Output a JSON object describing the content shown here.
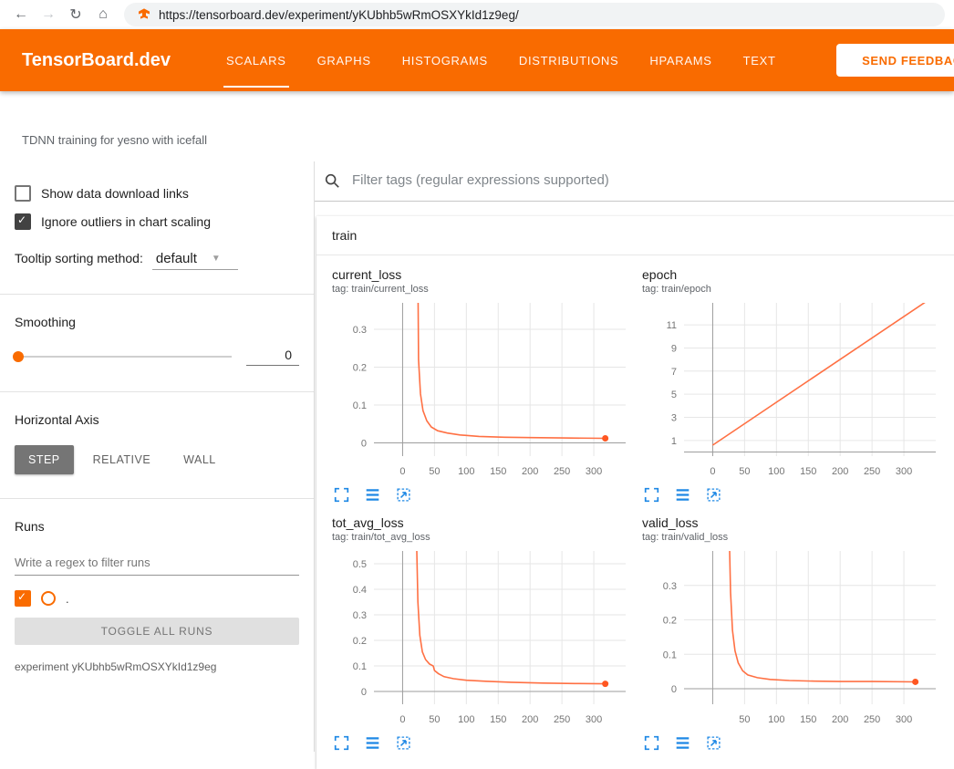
{
  "browser": {
    "url": "https://tensorboard.dev/experiment/yKUbhb5wRmOSXYkId1z9eg/",
    "back_glyph": "←",
    "forward_glyph": "→",
    "reload_glyph": "↻",
    "home_glyph": "⌂"
  },
  "appbar": {
    "brand": "TensorBoard.dev",
    "tabs": [
      "SCALARS",
      "GRAPHS",
      "HISTOGRAMS",
      "DISTRIBUTIONS",
      "HPARAMS",
      "TEXT"
    ],
    "active_tab": "SCALARS",
    "feedback_label": "SEND FEEDBACK"
  },
  "subheader": {
    "experiment_description": "TDNN training for yesno with icefall"
  },
  "sidebar": {
    "show_download_links": {
      "label": "Show data download links",
      "checked": false
    },
    "ignore_outliers": {
      "label": "Ignore outliers in chart scaling",
      "checked": true
    },
    "tooltip_sorting": {
      "label": "Tooltip sorting method:",
      "value": "default"
    },
    "smoothing": {
      "label": "Smoothing",
      "value": "0"
    },
    "horizontal_axis": {
      "label": "Horizontal Axis",
      "options": [
        "STEP",
        "RELATIVE",
        "WALL"
      ],
      "selected": "STEP"
    },
    "runs": {
      "label": "Runs",
      "filter_placeholder": "Write a regex to filter runs",
      "run_checked": true,
      "run_label": ".",
      "toggle_all_label": "TOGGLE ALL RUNS",
      "experiment_label": "experiment yKUbhb5wRmOSXYkId1z9eg"
    }
  },
  "main": {
    "filter_placeholder": "Filter tags (regular expressions supported)",
    "group_label": "train"
  },
  "theme": {
    "accent_orange": "#f96b00",
    "chart_line": "#ff7043",
    "chart_dot": "#ff5722",
    "icon_blue": "#1e88e5"
  },
  "chart_data": [
    {
      "type": "line",
      "title": "current_loss",
      "tag": "tag: train/current_loss",
      "x_ticks": [
        0,
        50,
        100,
        150,
        200,
        250,
        300
      ],
      "y_ticks": [
        0,
        0.1,
        0.2,
        0.3
      ],
      "xlim": [
        -45,
        350
      ],
      "ylim": [
        -0.035,
        0.37
      ],
      "endpoint_dot": true,
      "points": [
        [
          24,
          0.45
        ],
        [
          25,
          0.22
        ],
        [
          28,
          0.13
        ],
        [
          32,
          0.085
        ],
        [
          38,
          0.058
        ],
        [
          45,
          0.042
        ],
        [
          55,
          0.032
        ],
        [
          70,
          0.026
        ],
        [
          90,
          0.021
        ],
        [
          120,
          0.017
        ],
        [
          160,
          0.015
        ],
        [
          200,
          0.014
        ],
        [
          250,
          0.013
        ],
        [
          318,
          0.012
        ]
      ]
    },
    {
      "type": "line",
      "title": "epoch",
      "tag": "tag: train/epoch",
      "x_ticks": [
        0,
        50,
        100,
        150,
        200,
        250,
        300
      ],
      "y_ticks": [
        1,
        3,
        5,
        7,
        9,
        11
      ],
      "xlim": [
        -45,
        350
      ],
      "ylim": [
        -0.35,
        12.9
      ],
      "endpoint_dot": false,
      "points": [
        [
          0,
          0.6
        ],
        [
          340,
          13.2
        ]
      ]
    },
    {
      "type": "line",
      "title": "tot_avg_loss",
      "tag": "tag: train/tot_avg_loss",
      "x_ticks": [
        0,
        50,
        100,
        150,
        200,
        250,
        300
      ],
      "y_ticks": [
        0,
        0.1,
        0.2,
        0.3,
        0.4,
        0.5
      ],
      "xlim": [
        -45,
        350
      ],
      "ylim": [
        -0.05,
        0.55
      ],
      "endpoint_dot": true,
      "points": [
        [
          22,
          0.58
        ],
        [
          24,
          0.35
        ],
        [
          27,
          0.22
        ],
        [
          31,
          0.155
        ],
        [
          36,
          0.125
        ],
        [
          42,
          0.108
        ],
        [
          48,
          0.1
        ],
        [
          50,
          0.082
        ],
        [
          56,
          0.07
        ],
        [
          65,
          0.058
        ],
        [
          80,
          0.05
        ],
        [
          100,
          0.044
        ],
        [
          130,
          0.04
        ],
        [
          170,
          0.036
        ],
        [
          220,
          0.033
        ],
        [
          270,
          0.031
        ],
        [
          318,
          0.03
        ]
      ]
    },
    {
      "type": "line",
      "title": "valid_loss",
      "tag": "tag: train/valid_loss",
      "x_ticks": [
        50,
        100,
        150,
        200,
        250,
        300
      ],
      "y_ticks": [
        0,
        0.1,
        0.2,
        0.3
      ],
      "xlim": [
        -45,
        350
      ],
      "ylim": [
        -0.045,
        0.4
      ],
      "endpoint_dot": true,
      "points": [
        [
          26,
          0.45
        ],
        [
          28,
          0.28
        ],
        [
          31,
          0.17
        ],
        [
          35,
          0.11
        ],
        [
          40,
          0.075
        ],
        [
          47,
          0.052
        ],
        [
          55,
          0.04
        ],
        [
          70,
          0.032
        ],
        [
          90,
          0.027
        ],
        [
          120,
          0.024
        ],
        [
          160,
          0.022
        ],
        [
          200,
          0.021
        ],
        [
          250,
          0.021
        ],
        [
          318,
          0.02
        ]
      ]
    }
  ]
}
